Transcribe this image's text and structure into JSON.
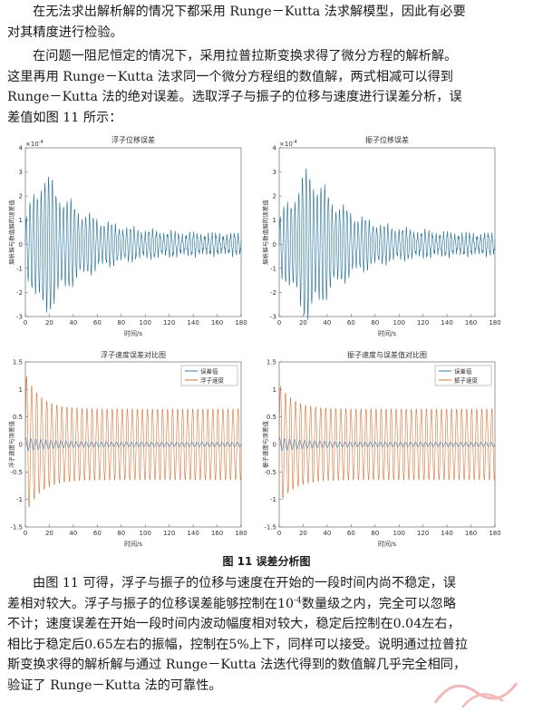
{
  "paragraphs": {
    "p1": [
      "在无法求出解析解的情况下都采用 Runge－Kutta 法求解模型，因此有必要",
      "对其精度进行检验。"
    ],
    "p2": [
      "在问题一阻尼恒定的情况下，采用拉普拉斯变换求得了微分方程的解析解。",
      "这里再用 Runge－Kutta 法求同一个微分方程组的数值解，两式相减可以得到",
      "Runge－Kutta 法的绝对误差。选取浮子与振子的位移与速度进行误差分析，误",
      "差值如图 11 所示："
    ],
    "p3": {
      "l1": "由图 11 可得，浮子与振子的位移与速度在开始的一段时间内尚不稳定，误",
      "l2": "差相对较大。浮子与振子的位移误差能够控制在10",
      "l2_sup": "-4",
      "l2_rest": "数量级之内，完全可以忽略",
      "l3": "不计；速度误差在开始一段时间内波动幅度相对较大，稳定后控制在0.04左右，",
      "l4": "相比于稳定后0.65左右的振幅，控制在5%上下，同样可以接受。说明通过拉普拉",
      "l5": "斯变换求得的解析解与通过 Runge－Kutta 法迭代得到的数值解几乎完全相同，",
      "l6": "验证了 Runge－Kutta 法的可靠性。"
    }
  },
  "figure_caption": "图 11 误差分析图",
  "chart_data": [
    {
      "type": "line",
      "title": "浮子位移误差",
      "xlabel": "时间/s",
      "ylabel": "解析解与数值解的误差值",
      "scale_label": "×10",
      "scale_exp": "-4",
      "xlim": [
        0,
        180
      ],
      "ylim": [
        -3,
        4
      ],
      "xticks": [
        "0",
        "20",
        "40",
        "60",
        "80",
        "100",
        "120",
        "140",
        "160",
        "180"
      ],
      "yticks": [
        "-3",
        "-2",
        "-1",
        "0",
        "1",
        "2",
        "3",
        "4"
      ],
      "series": [
        {
          "color": "#1f6f97",
          "amplitude_peak": 3.3,
          "peak_time": 15,
          "steady_amplitude": 0.4
        }
      ]
    },
    {
      "type": "line",
      "title": "振子位移误差",
      "xlabel": "时间/s",
      "ylabel": "解析解与数值解的误差值",
      "scale_label": "×10",
      "scale_exp": "-4",
      "xlim": [
        0,
        180
      ],
      "ylim": [
        -3,
        4
      ],
      "xticks": [
        "0",
        "20",
        "40",
        "60",
        "80",
        "100",
        "120",
        "140",
        "160",
        "180"
      ],
      "yticks": [
        "-3",
        "-2",
        "-1",
        "0",
        "1",
        "2",
        "3",
        "4"
      ],
      "series": [
        {
          "color": "#1f6f97",
          "amplitude_peak": 3.4,
          "peak_time": 25,
          "steady_amplitude": 0.4
        }
      ]
    },
    {
      "type": "line",
      "title": "浮子速度误差对比图",
      "xlabel": "时间/s",
      "ylabel": "浮子速度与误差值",
      "xlim": [
        0,
        180
      ],
      "ylim": [
        -1.5,
        1.5
      ],
      "xticks": [
        "0",
        "20",
        "40",
        "60",
        "80",
        "100",
        "120",
        "140",
        "160",
        "180"
      ],
      "yticks": [
        "-1.5",
        "-1",
        "-0.5",
        "0",
        "0.5",
        "1",
        "1.5"
      ],
      "legend": "top-right",
      "series": [
        {
          "name": "误差值",
          "color": "#3a7da8",
          "initial_amplitude": 0.12,
          "steady_amplitude": 0.04
        },
        {
          "name": "浮子速度",
          "color": "#d9733a",
          "initial_amplitude": 1.3,
          "steady_amplitude": 0.65
        }
      ]
    },
    {
      "type": "line",
      "title": "振子速度与误差值对比图",
      "xlabel": "时间/s",
      "ylabel": "振子速度与误差值",
      "xlim": [
        0,
        180
      ],
      "ylim": [
        -1.5,
        1.5
      ],
      "xticks": [
        "0",
        "20",
        "40",
        "60",
        "80",
        "100",
        "120",
        "140",
        "160",
        "180"
      ],
      "yticks": [
        "-1.5",
        "-1",
        "-0.5",
        "0",
        "0.5",
        "1",
        "1.5"
      ],
      "legend": "top-right",
      "series": [
        {
          "name": "误差值",
          "color": "#3a7da8",
          "initial_amplitude": 0.12,
          "steady_amplitude": 0.04
        },
        {
          "name": "振子速度",
          "color": "#d9733a",
          "initial_amplitude": 1.1,
          "steady_amplitude": 0.65
        }
      ]
    }
  ],
  "watermark_color": "#f2b8b8"
}
